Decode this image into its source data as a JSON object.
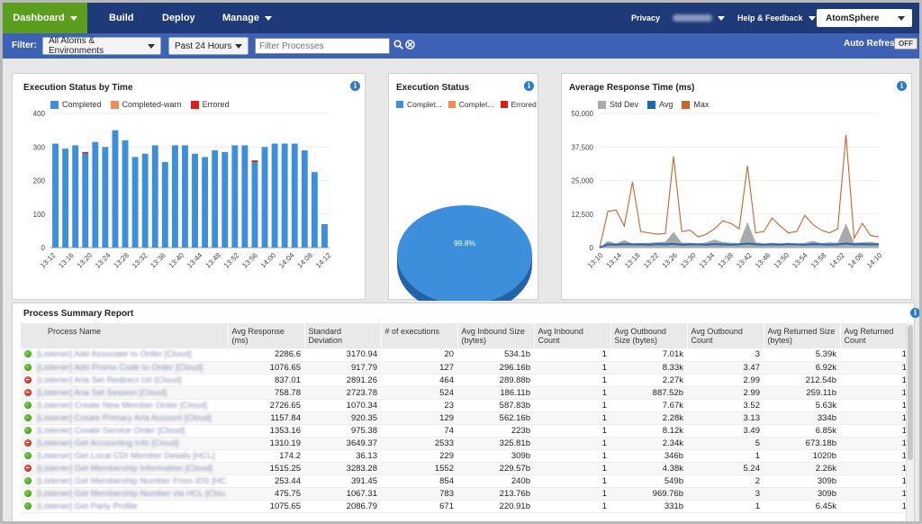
{
  "nav": {
    "dashboard": "Dashboard",
    "build": "Build",
    "deploy": "Deploy",
    "manage": "Manage",
    "privacy": "Privacy",
    "help": "Help & Feedback",
    "product": "AtomSphere"
  },
  "filter": {
    "label": "Filter:",
    "environment": "All Atoms & Environments",
    "time_range": "Past 24 Hours",
    "search_placeholder": "Filter Processes",
    "auto_refresh": "Auto Refresh",
    "auto_refresh_state": "OFF"
  },
  "colors": {
    "completed": "#3d8fdc",
    "completed_warn": "#f08c5a",
    "errored": "#d91e1e",
    "std_dev": "#a9a9a9",
    "avg": "#1f66b3",
    "max": "#c8642e",
    "nav_bg": "#1e3a78",
    "nav_active": "#5b9e1e"
  },
  "chart_data": [
    {
      "type": "bar",
      "title": "Execution Status by Time",
      "series": [
        {
          "name": "Completed",
          "values": [
            310,
            295,
            305,
            280,
            315,
            300,
            350,
            320,
            270,
            280,
            305,
            255,
            305,
            305,
            280,
            270,
            290,
            285,
            305,
            305,
            255,
            300,
            310,
            310,
            310,
            290,
            225,
            70
          ]
        },
        {
          "name": "Completed-warn",
          "values": [
            0,
            0,
            0,
            0,
            0,
            0,
            0,
            0,
            0,
            0,
            0,
            0,
            0,
            0,
            0,
            0,
            0,
            0,
            0,
            0,
            0,
            0,
            0,
            0,
            0,
            0,
            0,
            0
          ]
        },
        {
          "name": "Errored",
          "values": [
            0,
            0,
            0,
            5,
            0,
            0,
            0,
            0,
            0,
            0,
            0,
            0,
            0,
            0,
            0,
            0,
            0,
            0,
            0,
            0,
            5,
            0,
            0,
            0,
            0,
            0,
            0,
            0
          ]
        }
      ],
      "tick_labels": [
        "13:12",
        "13:16",
        "13:20",
        "13:24",
        "13:28",
        "13:32",
        "13:36",
        "13:40",
        "13:44",
        "13:48",
        "13:52",
        "13:56",
        "14:00",
        "14:04",
        "14:08",
        "14:12"
      ],
      "yticks": [
        0,
        100,
        200,
        300,
        400
      ],
      "ylim": [
        0,
        400
      ]
    },
    {
      "type": "pie",
      "title": "Execution Status",
      "legend": [
        "Complet...",
        "Complet...",
        "Errored"
      ],
      "slices": [
        {
          "name": "Completed",
          "value": 99.8
        },
        {
          "name": "Completed-warn",
          "value": 0.0
        },
        {
          "name": "Errored",
          "value": 0.2
        }
      ],
      "label": "99.8%"
    },
    {
      "type": "line",
      "title": "Average Response Time (ms)",
      "yticks": [
        "0",
        "12,500",
        "25,000",
        "37,500",
        "50,000"
      ],
      "ylim": [
        0,
        50000
      ],
      "tick_labels": [
        "13:10",
        "13:14",
        "13:18",
        "13:22",
        "13:26",
        "13:30",
        "13:34",
        "13:38",
        "13:42",
        "13:46",
        "13:50",
        "13:54",
        "13:58",
        "14:02",
        "14:06",
        "14:10"
      ],
      "series": [
        {
          "name": "Std Dev",
          "values": [
            0,
            2500,
            1500,
            2800,
            1500,
            1700,
            1800,
            2000,
            2200,
            5800,
            1800,
            1800,
            1500,
            2000,
            3000,
            2000,
            1800,
            1600,
            9500,
            2000,
            1500,
            1800,
            1600,
            1800,
            1500,
            1700,
            2500,
            1600,
            2000,
            1800,
            9000,
            1800,
            2000,
            2200,
            1600
          ]
        },
        {
          "name": "Avg",
          "values": [
            0,
            1200,
            1100,
            1300,
            1200,
            1200,
            1100,
            1300,
            1200,
            1400,
            1100,
            1200,
            1200,
            1100,
            1300,
            1200,
            1100,
            1200,
            1500,
            1200,
            1100,
            1200,
            1100,
            1300,
            1200,
            1100,
            1300,
            1200,
            1100,
            1200,
            1500,
            1200,
            1300,
            1200,
            1200
          ]
        },
        {
          "name": "Max",
          "values": [
            0,
            13500,
            14000,
            8000,
            24500,
            6000,
            5500,
            5000,
            5200,
            34000,
            6000,
            6500,
            4000,
            5000,
            7000,
            10000,
            9000,
            7000,
            30500,
            5500,
            6000,
            11000,
            8000,
            5500,
            6000,
            12000,
            8500,
            6500,
            5500,
            7000,
            42000,
            3500,
            9000,
            4500,
            4000
          ]
        }
      ]
    }
  ],
  "report": {
    "title": "Process Summary Report",
    "headers": [
      "Process Name",
      "Avg Response (ms)",
      "Standard Deviation",
      "# of executions",
      "Avg Inbound Size (bytes)",
      "Avg Inbound Count",
      "Avg Outbound Size (bytes)",
      "Avg Outbound Count",
      "Avg Returned Size (bytes)",
      "Avg Returned Count"
    ],
    "rows": [
      {
        "status": "ok",
        "name": "[Listener] Add Associate to Order [Cloud]",
        "avg": "2286.6",
        "std": "3170.94",
        "execs": "20",
        "in_size": "534.1b",
        "in_count": "1",
        "out_size": "7.01k",
        "out_count": "3",
        "ret_size": "5.39k",
        "ret_count": "1"
      },
      {
        "status": "ok",
        "name": "[Listener] Add Promo Code to Order [Cloud]",
        "avg": "1076.65",
        "std": "917.79",
        "execs": "127",
        "in_size": "296.16b",
        "in_count": "1",
        "out_size": "8.33k",
        "out_count": "3.47",
        "ret_size": "6.92k",
        "ret_count": "1"
      },
      {
        "status": "err",
        "name": "[Listener] Aria Set Redirect Url [Cloud]",
        "avg": "837.01",
        "std": "2891.26",
        "execs": "464",
        "in_size": "289.88b",
        "in_count": "1",
        "out_size": "2.27k",
        "out_count": "2.99",
        "ret_size": "212.54b",
        "ret_count": "1"
      },
      {
        "status": "err",
        "name": "[Listener] Aria Set Session [Cloud]",
        "avg": "758.78",
        "std": "2723.78",
        "execs": "524",
        "in_size": "186.11b",
        "in_count": "1",
        "out_size": "887.52b",
        "out_count": "2.99",
        "ret_size": "259.11b",
        "ret_count": "1"
      },
      {
        "status": "ok",
        "name": "[Listener] Create New Member Order [Cloud]",
        "avg": "2726.65",
        "std": "1070.34",
        "execs": "23",
        "in_size": "587.83b",
        "in_count": "1",
        "out_size": "7.67k",
        "out_count": "3.52",
        "ret_size": "5.63k",
        "ret_count": "1"
      },
      {
        "status": "ok",
        "name": "[Listener] Create Primary Aria Account [Cloud]",
        "avg": "1157.84",
        "std": "920.35",
        "execs": "129",
        "in_size": "562.16b",
        "in_count": "1",
        "out_size": "2.28k",
        "out_count": "3.13",
        "ret_size": "334b",
        "ret_count": "1"
      },
      {
        "status": "ok",
        "name": "[Listener] Create Service Order [Cloud]",
        "avg": "1353.16",
        "std": "975.38",
        "execs": "74",
        "in_size": "223b",
        "in_count": "1",
        "out_size": "8.12k",
        "out_count": "3.49",
        "ret_size": "6.85k",
        "ret_count": "1"
      },
      {
        "status": "err",
        "name": "[Listener] Get Accounting Info [Cloud]",
        "avg": "1310.19",
        "std": "3649.37",
        "execs": "2533",
        "in_size": "325.81b",
        "in_count": "1",
        "out_size": "2.34k",
        "out_count": "5",
        "ret_size": "673.18b",
        "ret_count": "1"
      },
      {
        "status": "ok",
        "name": "[Listener] Get Local CDI Member Details [HCL]",
        "avg": "174.2",
        "std": "36.13",
        "execs": "229",
        "in_size": "309b",
        "in_count": "1",
        "out_size": "346b",
        "out_count": "1",
        "ret_size": "1020b",
        "ret_count": "1"
      },
      {
        "status": "err",
        "name": "[Listener] Get Membership Information [Cloud]",
        "avg": "1515.25",
        "std": "3283.28",
        "execs": "1552",
        "in_size": "229.57b",
        "in_count": "1",
        "out_size": "4.38k",
        "out_count": "5.24",
        "ret_size": "2.26k",
        "ret_count": "1"
      },
      {
        "status": "ok",
        "name": "[Listener] Get Membership Number From IDS [HC",
        "avg": "253.44",
        "std": "391.45",
        "execs": "854",
        "in_size": "240b",
        "in_count": "1",
        "out_size": "549b",
        "out_count": "2",
        "ret_size": "309b",
        "ret_count": "1"
      },
      {
        "status": "ok",
        "name": "[Listener] Get Membership Number via HCL [Clou",
        "avg": "475.75",
        "std": "1067.31",
        "execs": "783",
        "in_size": "213.76b",
        "in_count": "1",
        "out_size": "969.76b",
        "out_count": "3",
        "ret_size": "309b",
        "ret_count": "1"
      },
      {
        "status": "ok",
        "name": "[Listener] Get Party Profile",
        "avg": "1075.65",
        "std": "2086.79",
        "execs": "671",
        "in_size": "220.91b",
        "in_count": "1",
        "out_size": "331b",
        "out_count": "1",
        "ret_size": "6.45k",
        "ret_count": "1"
      }
    ]
  }
}
